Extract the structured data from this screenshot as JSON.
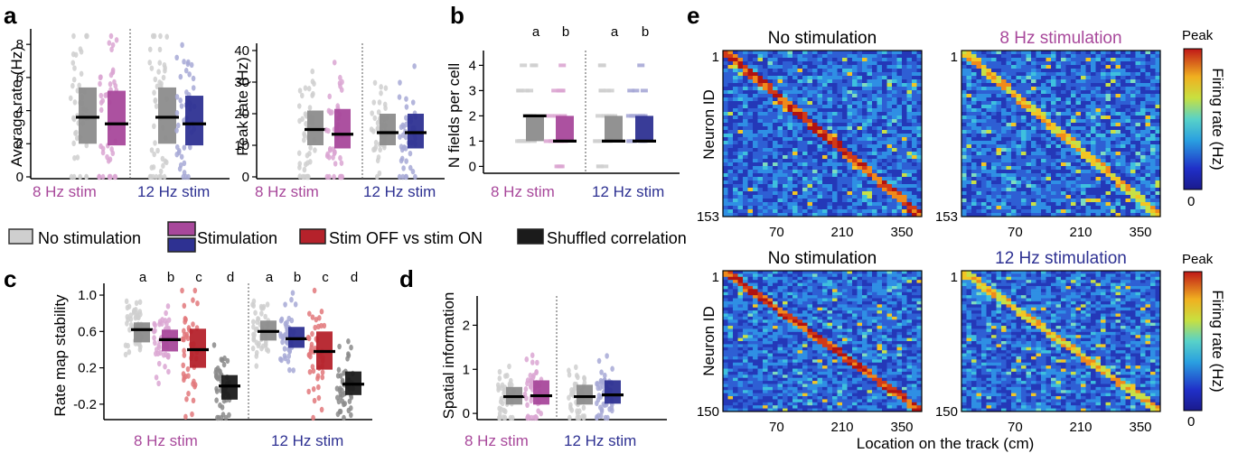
{
  "colors": {
    "no_stim": "#8c8c8c",
    "no_stim_light": "#cfcfcf",
    "stim8": "#a8489b",
    "stim8_light": "#dba6d2",
    "stim12": "#2e3192",
    "stim12_light": "#a7a9d6",
    "stim_off_on": "#b5222b",
    "stim_off_on_light": "#e2787b",
    "shuffled": "#1b1b1b",
    "shuffled_light": "#8a8a8a"
  },
  "labels": {
    "panel_a": "a",
    "panel_b": "b",
    "panel_c": "c",
    "panel_d": "d",
    "panel_e": "e",
    "a_left_ylabel": "Average rate (Hz)",
    "a_right_ylabel": "Peak rate (Hz)",
    "b_ylabel": "N fields per cell",
    "c_ylabel": "Rate map stability",
    "d_ylabel": "Spatial information",
    "group_8hz": "8 Hz stim",
    "group_12hz": "12 Hz stim",
    "legend_no_stim": "No stimulation",
    "legend_stim": "Stimulation",
    "legend_stim_off_on": "Stim OFF vs stim ON",
    "legend_shuffled": "Shuffled correlation",
    "e_title_top_left": "No stimulation",
    "e_title_top_right": "8 Hz stimulation",
    "e_title_bottom_left": "No stimulation",
    "e_title_bottom_right": "12 Hz stimulation",
    "e_ylabel": "Neuron ID",
    "e_xlabel": "Location on the track (cm)",
    "e_cbar_label": "Firing rate (Hz)",
    "e_cbar_top": "Peak",
    "e_cbar_bottom": "0"
  },
  "chart_data": [
    {
      "panel": "a-left",
      "type": "box",
      "ylabel": "Average rate (Hz)",
      "yticks": [
        "0",
        "2",
        "4",
        "6",
        "8"
      ],
      "ylim": [
        0,
        8.5
      ],
      "groups": [
        "8 Hz stim",
        "12 Hz stim"
      ],
      "series": [
        {
          "name": "No stimulation",
          "group": "8 Hz stim",
          "median": 3.6,
          "q1": 2.0,
          "q3": 5.4
        },
        {
          "name": "Stimulation",
          "group": "8 Hz stim",
          "median": 3.2,
          "q1": 1.9,
          "q3": 5.2
        },
        {
          "name": "No stimulation",
          "group": "12 Hz stim",
          "median": 3.6,
          "q1": 2.0,
          "q3": 5.4
        },
        {
          "name": "Stimulation",
          "group": "12 Hz stim",
          "median": 3.2,
          "q1": 1.9,
          "q3": 4.9
        }
      ]
    },
    {
      "panel": "a-right",
      "type": "box",
      "ylabel": "Peak rate (Hz)",
      "yticks": [
        "0",
        "10",
        "20",
        "30",
        "40"
      ],
      "ylim": [
        0,
        40
      ],
      "groups": [
        "8 Hz stim",
        "12 Hz stim"
      ],
      "series": [
        {
          "name": "No stimulation",
          "group": "8 Hz stim",
          "median": 15,
          "q1": 10,
          "q3": 21
        },
        {
          "name": "Stimulation",
          "group": "8 Hz stim",
          "median": 13.5,
          "q1": 9,
          "q3": 21.5
        },
        {
          "name": "No stimulation",
          "group": "12 Hz stim",
          "median": 14,
          "q1": 10,
          "q3": 20
        },
        {
          "name": "Stimulation",
          "group": "12 Hz stim",
          "median": 14,
          "q1": 9,
          "q3": 20
        }
      ]
    },
    {
      "panel": "b",
      "type": "box",
      "ylabel": "N fields per cell",
      "yticks": [
        "0",
        "1",
        "2",
        "3",
        "4"
      ],
      "ylim": [
        -0.2,
        4.3
      ],
      "groups": [
        "8 Hz stim",
        "12 Hz stim"
      ],
      "letters": [
        "a",
        "b",
        "a",
        "b"
      ],
      "series": [
        {
          "name": "No stimulation",
          "group": "8 Hz stim",
          "median": 2,
          "q1": 1,
          "q3": 2
        },
        {
          "name": "Stimulation",
          "group": "8 Hz stim",
          "median": 1,
          "q1": 1,
          "q3": 2
        },
        {
          "name": "No stimulation",
          "group": "12 Hz stim",
          "median": 1,
          "q1": 1,
          "q3": 2
        },
        {
          "name": "Stimulation",
          "group": "12 Hz stim",
          "median": 1,
          "q1": 1,
          "q3": 2
        }
      ]
    },
    {
      "panel": "c",
      "type": "box",
      "ylabel": "Rate map stability",
      "yticks": [
        "-0.2",
        "0.2",
        "0.6",
        "1.0"
      ],
      "ylim": [
        -0.35,
        1.05
      ],
      "groups": [
        "8 Hz stim",
        "12 Hz stim"
      ],
      "letters": [
        "a",
        "b",
        "c",
        "d",
        "a",
        "b",
        "c",
        "d"
      ],
      "series": [
        {
          "name": "No stimulation",
          "group": "8 Hz stim",
          "median": 0.62,
          "q1": 0.48,
          "q3": 0.7
        },
        {
          "name": "Stimulation",
          "group": "8 Hz stim",
          "median": 0.51,
          "q1": 0.38,
          "q3": 0.62
        },
        {
          "name": "Stim OFF vs stim ON",
          "group": "8 Hz stim",
          "median": 0.4,
          "q1": 0.2,
          "q3": 0.63
        },
        {
          "name": "Shuffled correlation",
          "group": "8 Hz stim",
          "median": 0.0,
          "q1": -0.15,
          "q3": 0.12
        },
        {
          "name": "No stimulation",
          "group": "12 Hz stim",
          "median": 0.6,
          "q1": 0.5,
          "q3": 0.72
        },
        {
          "name": "Stimulation",
          "group": "12 Hz stim",
          "median": 0.52,
          "q1": 0.42,
          "q3": 0.65
        },
        {
          "name": "Stim OFF vs stim ON",
          "group": "12 Hz stim",
          "median": 0.38,
          "q1": 0.18,
          "q3": 0.6
        },
        {
          "name": "Shuffled correlation",
          "group": "12 Hz stim",
          "median": 0.02,
          "q1": -0.1,
          "q3": 0.16
        }
      ]
    },
    {
      "panel": "d",
      "type": "box",
      "ylabel": "Spatial information",
      "yticks": [
        "0",
        "1",
        "2"
      ],
      "ylim": [
        -0.1,
        2.5
      ],
      "groups": [
        "8 Hz stim",
        "12 Hz stim"
      ],
      "series": [
        {
          "name": "No stimulation",
          "group": "8 Hz stim",
          "median": 0.38,
          "q1": 0.2,
          "q3": 0.6
        },
        {
          "name": "Stimulation",
          "group": "8 Hz stim",
          "median": 0.4,
          "q1": 0.2,
          "q3": 0.75
        },
        {
          "name": "No stimulation",
          "group": "12 Hz stim",
          "median": 0.38,
          "q1": 0.2,
          "q3": 0.65
        },
        {
          "name": "Stimulation",
          "group": "12 Hz stim",
          "median": 0.42,
          "q1": 0.22,
          "q3": 0.75
        }
      ]
    },
    {
      "panel": "e",
      "type": "heatmap",
      "xlabel": "Location on the track (cm)",
      "xticks": [
        "70",
        "210",
        "350"
      ],
      "maps": [
        {
          "title": "No stimulation",
          "ytop": "1",
          "ybottom": "153"
        },
        {
          "title": "8 Hz stimulation",
          "ytop": "1",
          "ybottom": "153"
        },
        {
          "title": "No stimulation",
          "ytop": "1",
          "ybottom": "150"
        },
        {
          "title": "12 Hz stimulation",
          "ytop": "1",
          "ybottom": "150"
        }
      ],
      "colorbar": {
        "label": "Firing rate (Hz)",
        "max": "Peak",
        "min": "0"
      }
    }
  ]
}
